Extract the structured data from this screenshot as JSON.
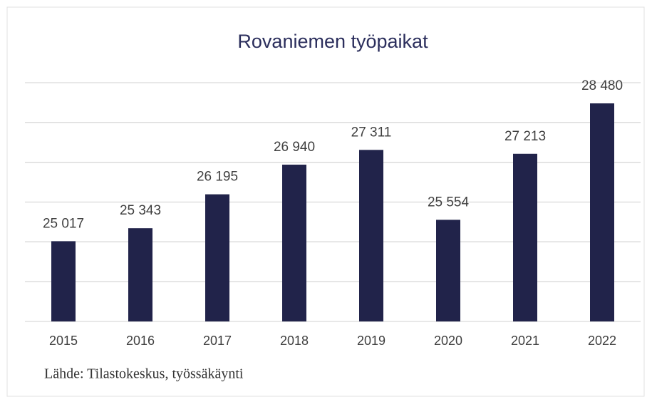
{
  "chart_data": {
    "type": "bar",
    "title": "Rovaniemen työpaikat",
    "categories": [
      "2015",
      "2016",
      "2017",
      "2018",
      "2019",
      "2020",
      "2021",
      "2022"
    ],
    "values": [
      25017,
      25343,
      26195,
      26940,
      27311,
      25554,
      27213,
      28480
    ],
    "value_labels": [
      "25 017",
      "25 343",
      "26 195",
      "26 940",
      "27 311",
      "25 554",
      "27 213",
      "28 480"
    ],
    "color": "#21234a",
    "ylim": [
      23000,
      29000
    ],
    "yticks": [
      23000,
      24000,
      25000,
      26000,
      27000,
      28000,
      29000
    ],
    "grid": true,
    "source": "Lähde: Tilastokeskus, työssäkäynti"
  }
}
